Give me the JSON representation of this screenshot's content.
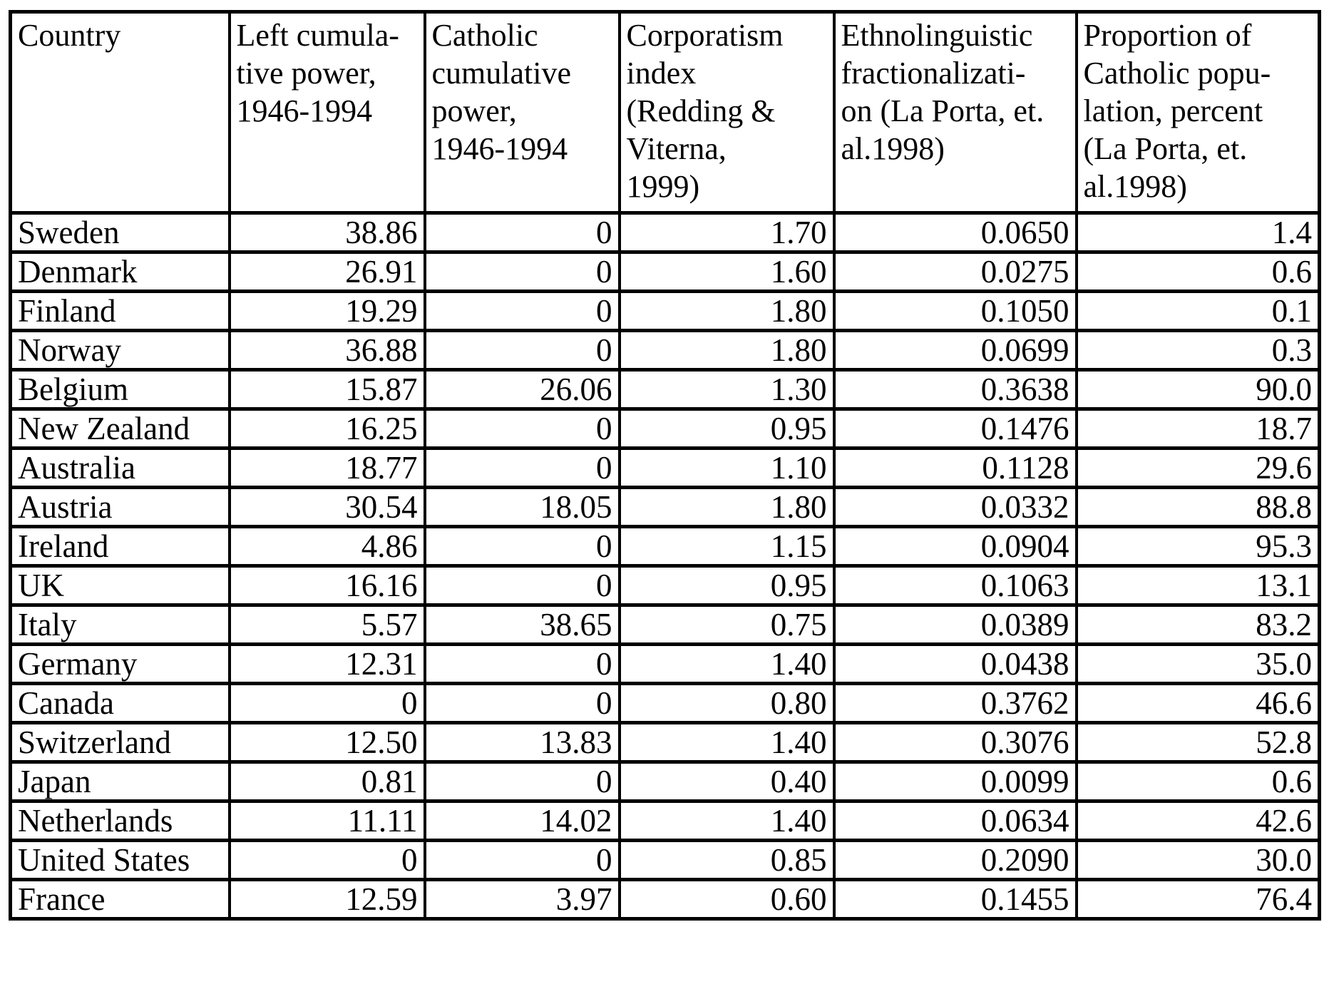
{
  "colors": {
    "background": "#ffffff",
    "border": "#000000",
    "text": "#000000"
  },
  "table": {
    "columns": [
      {
        "label": "Country"
      },
      {
        "label": "Left cumula-\ntive power,\n1946-1994"
      },
      {
        "label": "Catholic\ncumulative\npower,\n1946-1994"
      },
      {
        "label": "Corporatism\nindex\n(Redding &\nViterna,\n1999)"
      },
      {
        "label": "Ethnolinguistic\nfractionalizati-\non (La Porta, et.\nal.1998)"
      },
      {
        "label": "Proportion of\nCatholic popu-\nlation, percent\n(La Porta, et.\nal.1998)"
      }
    ],
    "rows": [
      {
        "country": "Sweden",
        "values": [
          "38.86",
          "0",
          "1.70",
          "0.0650",
          "1.4"
        ]
      },
      {
        "country": "Denmark",
        "values": [
          "26.91",
          "0",
          "1.60",
          "0.0275",
          "0.6"
        ]
      },
      {
        "country": "Finland",
        "values": [
          "19.29",
          "0",
          "1.80",
          "0.1050",
          "0.1"
        ]
      },
      {
        "country": "Norway",
        "values": [
          "36.88",
          "0",
          "1.80",
          "0.0699",
          "0.3"
        ]
      },
      {
        "country": "Belgium",
        "values": [
          "15.87",
          "26.06",
          "1.30",
          "0.3638",
          "90.0"
        ]
      },
      {
        "country": "New Zealand",
        "values": [
          "16.25",
          "0",
          "0.95",
          "0.1476",
          "18.7"
        ]
      },
      {
        "country": "Australia",
        "values": [
          "18.77",
          "0",
          "1.10",
          "0.1128",
          "29.6"
        ]
      },
      {
        "country": "Austria",
        "values": [
          "30.54",
          "18.05",
          "1.80",
          "0.0332",
          "88.8"
        ]
      },
      {
        "country": "Ireland",
        "values": [
          "4.86",
          "0",
          "1.15",
          "0.0904",
          "95.3"
        ]
      },
      {
        "country": "UK",
        "values": [
          "16.16",
          "0",
          "0.95",
          "0.1063",
          "13.1"
        ]
      },
      {
        "country": "Italy",
        "values": [
          "5.57",
          "38.65",
          "0.75",
          "0.0389",
          "83.2"
        ]
      },
      {
        "country": "Germany",
        "values": [
          "12.31",
          "0",
          "1.40",
          "0.0438",
          "35.0"
        ]
      },
      {
        "country": "Canada",
        "values": [
          "0",
          "0",
          "0.80",
          "0.3762",
          "46.6"
        ]
      },
      {
        "country": "Switzerland",
        "values": [
          "12.50",
          "13.83",
          "1.40",
          "0.3076",
          "52.8"
        ]
      },
      {
        "country": "Japan",
        "values": [
          "0.81",
          "0",
          "0.40",
          "0.0099",
          "0.6"
        ]
      },
      {
        "country": "Netherlands",
        "values": [
          "11.11",
          "14.02",
          "1.40",
          "0.0634",
          "42.6"
        ]
      },
      {
        "country": "United States",
        "values": [
          "0",
          "0",
          "0.85",
          "0.2090",
          "30.0"
        ]
      },
      {
        "country": "France",
        "values": [
          "12.59",
          "3.97",
          "0.60",
          "0.1455",
          "76.4"
        ]
      }
    ]
  }
}
